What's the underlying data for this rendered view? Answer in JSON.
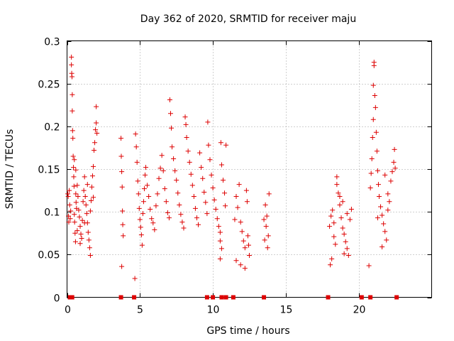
{
  "chart_data": {
    "type": "scatter",
    "title": "Day 362 of 2020, SRMTID for receiver maju",
    "xlabel": "GPS time / hours",
    "ylabel": "SRMTID / TECUs",
    "xlim": [
      0,
      25
    ],
    "ylim": [
      0,
      0.3
    ],
    "xticks": [
      0,
      5,
      10,
      15,
      20
    ],
    "xtick_labels": [
      "0",
      "5",
      "10",
      "15",
      "20"
    ],
    "yticks": [
      0,
      0.05,
      0.1,
      0.15,
      0.2,
      0.25,
      0.3
    ],
    "ytick_labels": [
      "0",
      "0.05",
      "0.1",
      "0.15",
      "0.2",
      "0.25",
      "0.3"
    ],
    "grid": true,
    "marker": "+",
    "color": "#dd0000",
    "zero_points_x": [
      0.2,
      0.35,
      3.7,
      4.6,
      9.6,
      10.0,
      10.6,
      10.9,
      11.4,
      13.5,
      17.9,
      20.2,
      20.8,
      22.6
    ],
    "series": [
      {
        "name": "SRMTID",
        "points": [
          [
            0.05,
            0.121
          ],
          [
            0.08,
            0.118
          ],
          [
            0.1,
            0.095
          ],
          [
            0.12,
            0.088
          ],
          [
            0.15,
            0.125
          ],
          [
            0.18,
            0.108
          ],
          [
            0.22,
            0.092
          ],
          [
            0.25,
            0.101
          ],
          [
            0.3,
            0.272
          ],
          [
            0.3,
            0.281
          ],
          [
            0.32,
            0.262
          ],
          [
            0.34,
            0.258
          ],
          [
            0.36,
            0.237
          ],
          [
            0.36,
            0.218
          ],
          [
            0.38,
            0.195
          ],
          [
            0.4,
            0.186
          ],
          [
            0.42,
            0.165
          ],
          [
            0.44,
            0.152
          ],
          [
            0.46,
            0.141
          ],
          [
            0.48,
            0.13
          ],
          [
            0.5,
            0.097
          ],
          [
            0.52,
            0.088
          ],
          [
            0.55,
            0.075
          ],
          [
            0.58,
            0.065
          ],
          [
            0.6,
            0.121
          ],
          [
            0.62,
            0.111
          ],
          [
            0.65,
            0.104
          ],
          [
            0.7,
            0.131
          ],
          [
            0.75,
            0.118
          ],
          [
            0.8,
            0.102
          ],
          [
            0.85,
            0.094
          ],
          [
            0.9,
            0.083
          ],
          [
            0.95,
            0.074
          ],
          [
            1.0,
            0.069
          ],
          [
            1.05,
            0.09
          ],
          [
            1.1,
            0.112
          ],
          [
            1.15,
            0.125
          ],
          [
            1.2,
            0.141
          ],
          [
            1.25,
            0.118
          ],
          [
            1.3,
            0.108
          ],
          [
            1.35,
            0.098
          ],
          [
            1.4,
            0.087
          ],
          [
            1.45,
            0.076
          ],
          [
            1.5,
            0.067
          ],
          [
            1.55,
            0.058
          ],
          [
            1.6,
            0.049
          ],
          [
            1.65,
            0.113
          ],
          [
            1.7,
            0.129
          ],
          [
            1.75,
            0.142
          ],
          [
            1.8,
            0.153
          ],
          [
            1.85,
            0.172
          ],
          [
            1.9,
            0.181
          ],
          [
            1.95,
            0.196
          ],
          [
            2.0,
            0.204
          ],
          [
            2.0,
            0.223
          ],
          [
            2.05,
            0.192
          ],
          [
            0.7,
            0.078
          ],
          [
            0.9,
            0.063
          ],
          [
            1.2,
            0.087
          ],
          [
            1.4,
            0.132
          ],
          [
            1.6,
            0.101
          ],
          [
            1.8,
            0.117
          ],
          [
            0.5,
            0.161
          ],
          [
            0.6,
            0.149
          ],
          [
            3.7,
            0.186
          ],
          [
            3.72,
            0.165
          ],
          [
            3.75,
            0.147
          ],
          [
            3.78,
            0.129
          ],
          [
            3.8,
            0.101
          ],
          [
            3.82,
            0.085
          ],
          [
            3.85,
            0.072
          ],
          [
            3.75,
            0.036
          ],
          [
            4.65,
            0.022
          ],
          [
            4.7,
            0.191
          ],
          [
            4.75,
            0.176
          ],
          [
            4.8,
            0.158
          ],
          [
            4.85,
            0.136
          ],
          [
            4.9,
            0.121
          ],
          [
            4.95,
            0.104
          ],
          [
            5.0,
            0.091
          ],
          [
            5.05,
            0.082
          ],
          [
            5.1,
            0.073
          ],
          [
            5.15,
            0.061
          ],
          [
            5.2,
            0.098
          ],
          [
            5.25,
            0.112
          ],
          [
            5.3,
            0.127
          ],
          [
            5.35,
            0.143
          ],
          [
            5.4,
            0.152
          ],
          [
            5.5,
            0.131
          ],
          [
            5.6,
            0.118
          ],
          [
            5.7,
            0.103
          ],
          [
            5.8,
            0.092
          ],
          [
            5.9,
            0.087
          ],
          [
            6.0,
            0.079
          ],
          [
            6.1,
            0.107
          ],
          [
            6.2,
            0.121
          ],
          [
            6.3,
            0.139
          ],
          [
            6.4,
            0.151
          ],
          [
            6.5,
            0.166
          ],
          [
            6.6,
            0.148
          ],
          [
            6.7,
            0.127
          ],
          [
            6.8,
            0.112
          ],
          [
            6.9,
            0.099
          ],
          [
            7.0,
            0.093
          ],
          [
            7.05,
            0.231
          ],
          [
            7.1,
            0.215
          ],
          [
            7.15,
            0.198
          ],
          [
            7.2,
            0.176
          ],
          [
            7.3,
            0.162
          ],
          [
            7.4,
            0.148
          ],
          [
            7.5,
            0.137
          ],
          [
            7.6,
            0.122
          ],
          [
            7.7,
            0.108
          ],
          [
            7.8,
            0.097
          ],
          [
            7.9,
            0.088
          ],
          [
            8.0,
            0.081
          ],
          [
            8.1,
            0.211
          ],
          [
            8.15,
            0.202
          ],
          [
            8.2,
            0.187
          ],
          [
            8.3,
            0.171
          ],
          [
            8.4,
            0.158
          ],
          [
            8.5,
            0.144
          ],
          [
            8.6,
            0.131
          ],
          [
            8.7,
            0.118
          ],
          [
            8.8,
            0.104
          ],
          [
            8.9,
            0.093
          ],
          [
            9.0,
            0.085
          ],
          [
            9.1,
            0.169
          ],
          [
            9.2,
            0.152
          ],
          [
            9.3,
            0.139
          ],
          [
            9.4,
            0.123
          ],
          [
            9.5,
            0.111
          ],
          [
            9.6,
            0.098
          ],
          [
            9.65,
            0.205
          ],
          [
            9.7,
            0.178
          ],
          [
            9.8,
            0.161
          ],
          [
            9.9,
            0.143
          ],
          [
            10.0,
            0.128
          ],
          [
            10.1,
            0.114
          ],
          [
            10.2,
            0.103
          ],
          [
            10.3,
            0.092
          ],
          [
            10.4,
            0.083
          ],
          [
            10.5,
            0.076
          ],
          [
            10.5,
            0.066
          ],
          [
            10.55,
            0.181
          ],
          [
            10.6,
            0.155
          ],
          [
            10.7,
            0.137
          ],
          [
            10.8,
            0.122
          ],
          [
            10.85,
            0.107
          ],
          [
            10.9,
            0.178
          ],
          [
            10.6,
            0.057
          ],
          [
            10.5,
            0.045
          ],
          [
            11.5,
            0.091
          ],
          [
            11.6,
            0.118
          ],
          [
            11.7,
            0.105
          ],
          [
            11.8,
            0.132
          ],
          [
            11.9,
            0.088
          ],
          [
            12.0,
            0.077
          ],
          [
            12.1,
            0.066
          ],
          [
            12.2,
            0.058
          ],
          [
            12.3,
            0.125
          ],
          [
            12.35,
            0.112
          ],
          [
            12.4,
            0.072
          ],
          [
            12.45,
            0.061
          ],
          [
            12.5,
            0.049
          ],
          [
            11.6,
            0.043
          ],
          [
            11.9,
            0.038
          ],
          [
            12.2,
            0.034
          ],
          [
            13.5,
            0.091
          ],
          [
            13.6,
            0.108
          ],
          [
            13.7,
            0.095
          ],
          [
            13.8,
            0.072
          ],
          [
            13.85,
            0.121
          ],
          [
            13.75,
            0.058
          ],
          [
            13.65,
            0.083
          ],
          [
            13.55,
            0.067
          ],
          [
            18.0,
            0.083
          ],
          [
            18.1,
            0.095
          ],
          [
            18.2,
            0.102
          ],
          [
            18.3,
            0.071
          ],
          [
            18.4,
            0.062
          ],
          [
            18.5,
            0.141
          ],
          [
            18.6,
            0.122
          ],
          [
            18.7,
            0.108
          ],
          [
            18.8,
            0.093
          ],
          [
            18.9,
            0.081
          ],
          [
            19.0,
            0.074
          ],
          [
            19.1,
            0.065
          ],
          [
            19.2,
            0.057
          ],
          [
            19.3,
            0.049
          ],
          [
            19.4,
            0.091
          ],
          [
            19.5,
            0.103
          ],
          [
            18.05,
            0.038
          ],
          [
            18.15,
            0.045
          ],
          [
            18.5,
            0.132
          ],
          [
            18.9,
            0.112
          ],
          [
            19.2,
            0.098
          ],
          [
            19.0,
            0.051
          ],
          [
            18.7,
            0.118
          ],
          [
            18.3,
            0.087
          ],
          [
            20.7,
            0.037
          ],
          [
            20.8,
            0.128
          ],
          [
            20.85,
            0.145
          ],
          [
            20.9,
            0.162
          ],
          [
            20.95,
            0.187
          ],
          [
            21.0,
            0.208
          ],
          [
            21.0,
            0.248
          ],
          [
            21.05,
            0.275
          ],
          [
            21.05,
            0.271
          ],
          [
            21.1,
            0.236
          ],
          [
            21.15,
            0.222
          ],
          [
            21.2,
            0.193
          ],
          [
            21.25,
            0.171
          ],
          [
            21.3,
            0.148
          ],
          [
            21.35,
            0.132
          ],
          [
            21.4,
            0.118
          ],
          [
            21.5,
            0.106
          ],
          [
            21.6,
            0.096
          ],
          [
            21.7,
            0.086
          ],
          [
            21.8,
            0.077
          ],
          [
            21.9,
            0.067
          ],
          [
            22.0,
            0.121
          ],
          [
            22.1,
            0.112
          ],
          [
            22.2,
            0.136
          ],
          [
            22.3,
            0.147
          ],
          [
            22.4,
            0.158
          ],
          [
            22.45,
            0.173
          ],
          [
            22.5,
            0.151
          ],
          [
            21.8,
            0.143
          ],
          [
            21.6,
            0.059
          ],
          [
            21.3,
            0.093
          ],
          [
            22.0,
            0.102
          ]
        ]
      }
    ]
  }
}
